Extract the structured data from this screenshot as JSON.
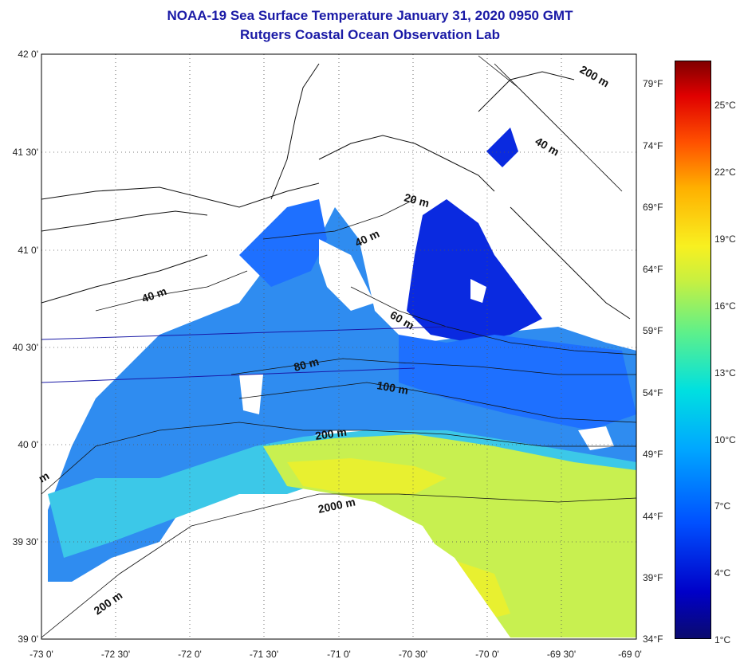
{
  "title": {
    "line1": "NOAA-19 Sea Surface Temperature January 31, 2020 0950 GMT",
    "line2": "Rutgers Coastal Ocean Observation Lab"
  },
  "axes": {
    "lat_labels": [
      "42 0'",
      "41 30'",
      "41 0'",
      "40 30'",
      "40 0'",
      "39 30'",
      "39 0'"
    ],
    "lon_labels": [
      "-73 0'",
      "-72 30'",
      "-72 0'",
      "-71 30'",
      "-71 0'",
      "-70 30'",
      "-70 0'",
      "-69 30'",
      "-69 0'"
    ]
  },
  "isobath_labels": [
    "200 m",
    "40 m",
    "20 m",
    "40 m",
    "40 m",
    "60 m",
    "80 m",
    "100 m",
    "200 m",
    "2000 m",
    "200 m",
    "m"
  ],
  "colorbar": {
    "fahrenheit": [
      "79°F",
      "74°F",
      "69°F",
      "64°F",
      "59°F",
      "54°F",
      "49°F",
      "44°F",
      "39°F",
      "34°F"
    ],
    "celsius": [
      "25°C",
      "22°C",
      "19°C",
      "16°C",
      "13°C",
      "10°C",
      "7°C",
      "4°C",
      "1°C"
    ],
    "colors": {
      "min": "#0a0a6e",
      "cold": "#0050ff",
      "mid": "#00e0e0",
      "warm": "#f8f020",
      "max": "#800000"
    }
  }
}
